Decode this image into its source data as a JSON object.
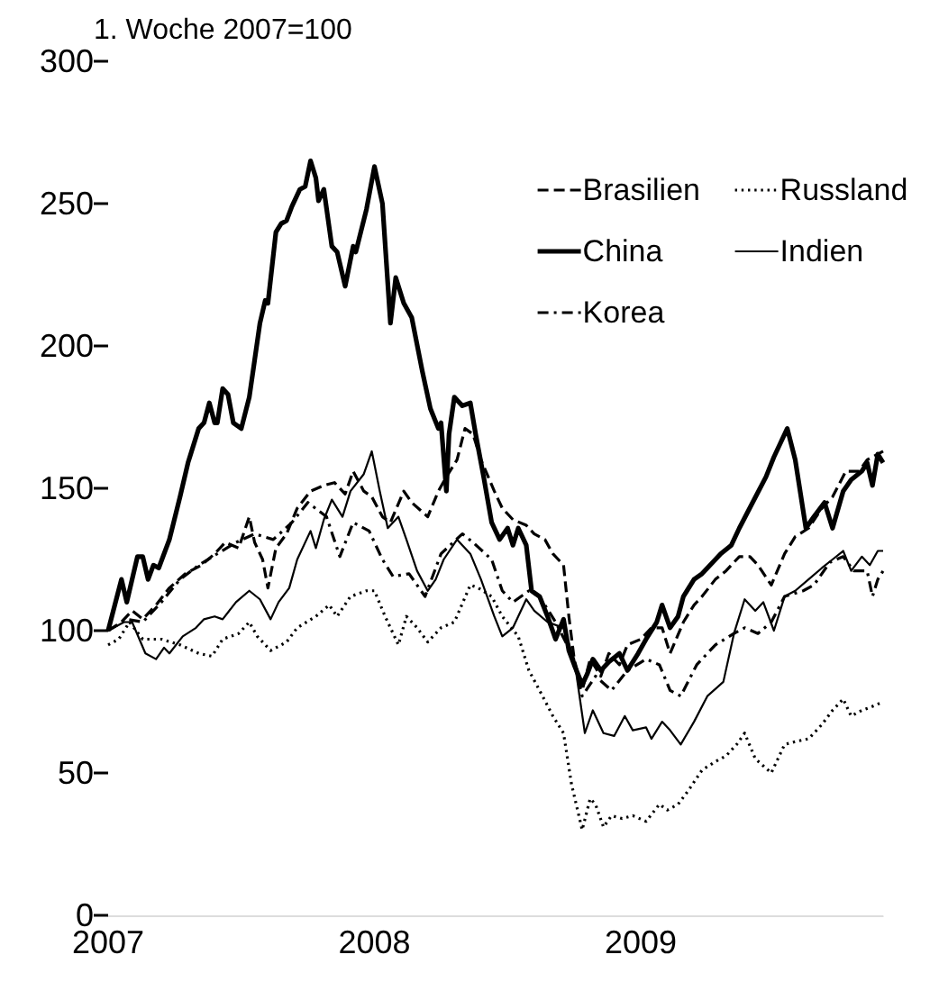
{
  "chart_data": {
    "type": "line",
    "ylabel": "1. Woche 2007=100",
    "xlim": [
      2007,
      2009.91
    ],
    "xticks": [
      2007,
      2008,
      2009
    ],
    "ylim": [
      0,
      300
    ],
    "yticks": [
      0,
      50,
      100,
      150,
      200,
      250,
      300
    ],
    "grid": false,
    "legend": "top right",
    "marker": "none",
    "series": [
      {
        "name": "Brasilien",
        "color": "#000000",
        "line_style": "dashed",
        "x": [
          2007.0,
          2007.05,
          2007.09,
          2007.13,
          2007.18,
          2007.23,
          2007.29,
          2007.35,
          2007.4,
          2007.44,
          2007.49,
          2007.53,
          2007.55,
          2007.58,
          2007.6,
          2007.63,
          2007.67,
          2007.71,
          2007.76,
          2007.81,
          2007.85,
          2007.89,
          2007.92,
          2007.96,
          2007.99,
          2008.03,
          2008.06,
          2008.11,
          2008.14,
          2008.2,
          2008.24,
          2008.27,
          2008.31,
          2008.34,
          2008.37,
          2008.4,
          2008.45,
          2008.48,
          2008.52,
          2008.57,
          2008.6,
          2008.64,
          2008.67,
          2008.71,
          2008.73,
          2008.75,
          2008.78,
          2008.81,
          2008.85,
          2008.88,
          2008.92,
          2008.95,
          2009.0,
          2009.04,
          2009.08,
          2009.11,
          2009.16,
          2009.2,
          2009.23,
          2009.28,
          2009.32,
          2009.37,
          2009.41,
          2009.44,
          2009.49,
          2009.54,
          2009.58,
          2009.63,
          2009.68,
          2009.72,
          2009.77,
          2009.82,
          2009.85,
          2009.89,
          2009.91
        ],
        "values": [
          100,
          103,
          107,
          104,
          109,
          115,
          120,
          123,
          127,
          131,
          129,
          140,
          131,
          125,
          115,
          129,
          134,
          143,
          149,
          151,
          152,
          148,
          156,
          149,
          147,
          140,
          138,
          149,
          145,
          140,
          149,
          154,
          160,
          171,
          169,
          160,
          149,
          143,
          139,
          137,
          134,
          132,
          127,
          123,
          105,
          90,
          79,
          90,
          84,
          92,
          88,
          95,
          97,
          101,
          101,
          92,
          103,
          109,
          112,
          118,
          121,
          126,
          126,
          123,
          116,
          127,
          133,
          136,
          143,
          147,
          156,
          156,
          160,
          162,
          163
        ]
      },
      {
        "name": "Russland",
        "color": "#000000",
        "line_style": "dotted",
        "x": [
          2007.0,
          2007.04,
          2007.08,
          2007.13,
          2007.2,
          2007.27,
          2007.34,
          2007.39,
          2007.43,
          2007.49,
          2007.53,
          2007.56,
          2007.61,
          2007.67,
          2007.71,
          2007.78,
          2007.83,
          2007.86,
          2007.91,
          2007.97,
          2008.0,
          2008.04,
          2008.09,
          2008.12,
          2008.16,
          2008.2,
          2008.25,
          2008.3,
          2008.36,
          2008.39,
          2008.44,
          2008.48,
          2008.54,
          2008.58,
          2008.62,
          2008.67,
          2008.71,
          2008.74,
          2008.78,
          2008.81,
          2008.83,
          2008.86,
          2008.89,
          2008.93,
          2008.97,
          2009.02,
          2009.07,
          2009.1,
          2009.14,
          2009.18,
          2009.23,
          2009.28,
          2009.32,
          2009.36,
          2009.39,
          2009.43,
          2009.49,
          2009.54,
          2009.58,
          2009.63,
          2009.68,
          2009.72,
          2009.76,
          2009.79,
          2009.83,
          2009.86,
          2009.91
        ],
        "values": [
          95,
          97,
          103,
          97,
          97,
          95,
          92,
          91,
          97,
          99,
          103,
          98,
          93,
          96,
          101,
          105,
          109,
          105,
          112,
          114,
          114,
          105,
          95,
          105,
          101,
          96,
          101,
          103,
          116,
          115,
          112,
          105,
          98,
          86,
          79,
          70,
          64,
          46,
          30,
          41,
          39,
          31,
          35,
          34,
          35,
          33,
          39,
          37,
          39,
          44,
          51,
          54,
          56,
          60,
          64,
          55,
          50,
          60,
          61,
          62,
          67,
          72,
          76,
          70,
          72,
          73,
          75
        ]
      },
      {
        "name": "China",
        "color": "#000000",
        "line_style": "solid",
        "x": [
          2007.0,
          2007.05,
          2007.07,
          2007.11,
          2007.13,
          2007.15,
          2007.17,
          2007.19,
          2007.23,
          2007.27,
          2007.3,
          2007.34,
          2007.36,
          2007.38,
          2007.4,
          2007.41,
          2007.43,
          2007.45,
          2007.47,
          2007.5,
          2007.53,
          2007.55,
          2007.57,
          2007.59,
          2007.6,
          2007.63,
          2007.65,
          2007.67,
          2007.69,
          2007.72,
          2007.74,
          2007.76,
          2007.78,
          2007.79,
          2007.81,
          2007.84,
          2007.86,
          2007.89,
          2007.92,
          2007.93,
          2007.97,
          2008.0,
          2008.03,
          2008.06,
          2008.08,
          2008.11,
          2008.14,
          2008.18,
          2008.21,
          2008.24,
          2008.25,
          2008.27,
          2008.28,
          2008.3,
          2008.33,
          2008.36,
          2008.38,
          2008.41,
          2008.44,
          2008.47,
          2008.5,
          2008.52,
          2008.54,
          2008.57,
          2008.59,
          2008.62,
          2008.65,
          2008.68,
          2008.71,
          2008.73,
          2008.75,
          2008.78,
          2008.8,
          2008.82,
          2008.85,
          2008.88,
          2008.92,
          2008.95,
          2008.99,
          2009.02,
          2009.06,
          2009.08,
          2009.11,
          2009.14,
          2009.16,
          2009.2,
          2009.23,
          2009.27,
          2009.3,
          2009.34,
          2009.37,
          2009.42,
          2009.47,
          2009.5,
          2009.55,
          2009.58,
          2009.62,
          2009.65,
          2009.69,
          2009.72,
          2009.76,
          2009.79,
          2009.83,
          2009.85,
          2009.87,
          2009.89,
          2009.91
        ],
        "values": [
          100,
          118,
          110,
          126,
          126,
          118,
          123,
          122,
          132,
          147,
          159,
          171,
          173,
          180,
          173,
          173,
          185,
          183,
          173,
          171,
          182,
          195,
          208,
          216,
          215,
          240,
          243,
          244,
          249,
          255,
          256,
          265,
          259,
          251,
          255,
          235,
          233,
          221,
          235,
          233,
          248,
          263,
          250,
          208,
          224,
          215,
          210,
          191,
          178,
          171,
          173,
          149,
          169,
          182,
          179,
          180,
          169,
          154,
          138,
          132,
          136,
          130,
          136,
          130,
          114,
          112,
          105,
          97,
          104,
          93,
          88,
          81,
          85,
          90,
          86,
          89,
          92,
          86,
          92,
          97,
          103,
          109,
          101,
          105,
          112,
          118,
          120,
          124,
          127,
          130,
          136,
          145,
          154,
          161,
          171,
          160,
          136,
          140,
          145,
          136,
          149,
          153,
          156,
          159,
          151,
          162,
          159
        ]
      },
      {
        "name": "Indien",
        "color": "#000000",
        "line_style": "solid",
        "x": [
          2007.0,
          2007.06,
          2007.09,
          2007.14,
          2007.18,
          2007.21,
          2007.23,
          2007.28,
          2007.33,
          2007.36,
          2007.4,
          2007.43,
          2007.48,
          2007.53,
          2007.57,
          2007.61,
          2007.64,
          2007.68,
          2007.71,
          2007.76,
          2007.78,
          2007.81,
          2007.84,
          2007.88,
          2007.91,
          2007.96,
          2007.99,
          2008.02,
          2008.05,
          2008.09,
          2008.12,
          2008.16,
          2008.2,
          2008.23,
          2008.26,
          2008.31,
          2008.36,
          2008.4,
          2008.45,
          2008.48,
          2008.52,
          2008.57,
          2008.6,
          2008.65,
          2008.71,
          2008.75,
          2008.79,
          2008.82,
          2008.86,
          2008.9,
          2008.94,
          2008.97,
          2009.02,
          2009.04,
          2009.08,
          2009.11,
          2009.15,
          2009.2,
          2009.25,
          2009.31,
          2009.35,
          2009.39,
          2009.43,
          2009.46,
          2009.5,
          2009.54,
          2009.58,
          2009.63,
          2009.68,
          2009.72,
          2009.76,
          2009.79,
          2009.83,
          2009.86,
          2009.89,
          2009.91
        ],
        "values": [
          100,
          103,
          103,
          92,
          90,
          94,
          92,
          98,
          101,
          104,
          105,
          104,
          110,
          114,
          111,
          104,
          110,
          115,
          125,
          135,
          129,
          139,
          146,
          140,
          149,
          155,
          163,
          149,
          136,
          140,
          132,
          121,
          114,
          118,
          125,
          132,
          127,
          118,
          105,
          98,
          101,
          111,
          107,
          103,
          101,
          90,
          64,
          72,
          64,
          63,
          70,
          65,
          66,
          62,
          68,
          65,
          60,
          68,
          77,
          82,
          99,
          111,
          107,
          110,
          100,
          112,
          114,
          118,
          122,
          125,
          128,
          121,
          126,
          123,
          128,
          128
        ]
      },
      {
        "name": "Korea",
        "color": "#000000",
        "line_style": "dashdot",
        "x": [
          2007.0,
          2007.07,
          2007.13,
          2007.2,
          2007.27,
          2007.34,
          2007.41,
          2007.48,
          2007.55,
          2007.62,
          2007.69,
          2007.75,
          2007.82,
          2007.87,
          2007.92,
          2007.98,
          2008.03,
          2008.07,
          2008.13,
          2008.19,
          2008.25,
          2008.33,
          2008.37,
          2008.44,
          2008.48,
          2008.52,
          2008.58,
          2008.62,
          2008.68,
          2008.74,
          2008.78,
          2008.83,
          2008.89,
          2008.95,
          2009.02,
          2009.07,
          2009.11,
          2009.15,
          2009.21,
          2009.28,
          2009.35,
          2009.39,
          2009.44,
          2009.49,
          2009.54,
          2009.61,
          2009.65,
          2009.71,
          2009.76,
          2009.8,
          2009.85,
          2009.87,
          2009.89,
          2009.91
        ],
        "values": [
          100,
          104,
          103,
          110,
          118,
          123,
          127,
          131,
          134,
          132,
          138,
          145,
          140,
          126,
          138,
          135,
          125,
          119,
          120,
          112,
          127,
          134,
          131,
          125,
          114,
          110,
          114,
          112,
          103,
          92,
          77,
          84,
          79,
          86,
          90,
          88,
          79,
          77,
          88,
          95,
          99,
          101,
          99,
          103,
          112,
          114,
          116,
          124,
          126,
          121,
          121,
          112,
          118,
          121
        ]
      }
    ]
  }
}
